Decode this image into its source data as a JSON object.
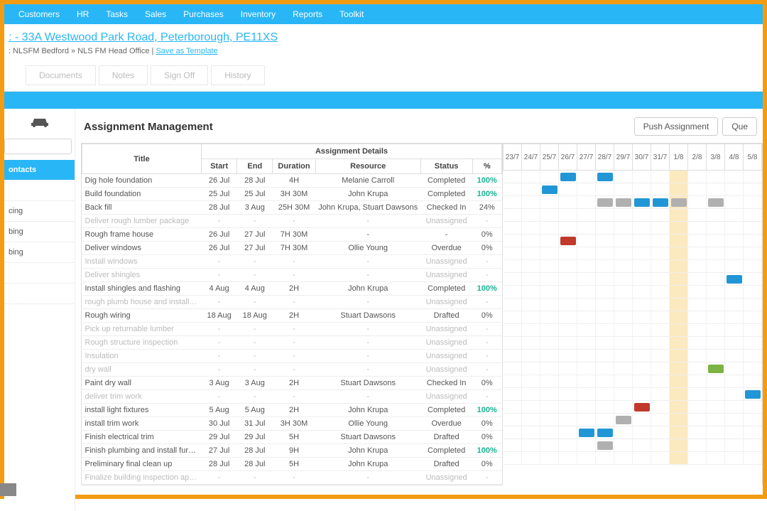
{
  "colors": {
    "blue": "#29b6f6",
    "bar_blue": "#2196d6",
    "bar_gray": "#b0b0b0",
    "bar_red": "#c0392b",
    "bar_green": "#7cb342",
    "highlight": "#fbe9c0"
  },
  "topnav": [
    "Customers",
    "HR",
    "Tasks",
    "Sales",
    "Purchases",
    "Inventory",
    "Reports",
    "Toolkit"
  ],
  "header": {
    "title": ": - 33A Westwood Park Road, Peterborough, PE11XS",
    "crumb_prefix": ": NLSFM Bedford » NLS FM Head Office | ",
    "crumb_link": "Save as Template"
  },
  "tabs": [
    "Documents",
    "Notes",
    "Sign Off",
    "History"
  ],
  "sidebar": {
    "items": [
      {
        "label": "ontacts",
        "active": true
      },
      {
        "label": "",
        "active": false
      },
      {
        "label": "cing",
        "active": false
      },
      {
        "label": "bing",
        "active": false
      },
      {
        "label": "bing",
        "active": false
      },
      {
        "label": "",
        "active": false
      },
      {
        "label": "",
        "active": false
      }
    ]
  },
  "page": {
    "title": "Assignment Management",
    "buttons": [
      "Push Assignment",
      "Que"
    ]
  },
  "table": {
    "group_header": "Assignment Details",
    "columns": [
      "Title",
      "Start",
      "End",
      "Duration",
      "Resource",
      "Status",
      "%"
    ],
    "rows": [
      {
        "title": "Dig hole foundation",
        "start": "26 Jul",
        "end": "28 Jul",
        "dur": "4H",
        "res": "Melanie Carroll",
        "stat": "Completed",
        "pct": "100%",
        "pct100": true
      },
      {
        "title": "Build foundation",
        "start": "25 Jul",
        "end": "25 Jul",
        "dur": "3H 30M",
        "res": "John Krupa",
        "stat": "Completed",
        "pct": "100%",
        "pct100": true
      },
      {
        "title": "Back fill",
        "start": "28 Jul",
        "end": "3 Aug",
        "dur": "25H 30M",
        "res": "John Krupa, Stuart Dawsons",
        "stat": "Checked In",
        "pct": "24%"
      },
      {
        "title": "Deliver rough lumber package",
        "start": "-",
        "end": "-",
        "dur": "-",
        "res": "-",
        "stat": "Unassigned",
        "pct": "-",
        "unassigned": true
      },
      {
        "title": "Rough frame house",
        "start": "26 Jul",
        "end": "27 Jul",
        "dur": "7H 30M",
        "res": "-",
        "stat": "-",
        "pct": "0%"
      },
      {
        "title": "Deliver windows",
        "start": "26 Jul",
        "end": "27 Jul",
        "dur": "7H 30M",
        "res": "Ollie Young",
        "stat": "Overdue",
        "pct": "0%"
      },
      {
        "title": "Install windows",
        "start": "-",
        "end": "-",
        "dur": "-",
        "res": "-",
        "stat": "Unassigned",
        "pct": "-",
        "unassigned": true
      },
      {
        "title": "Deliver shingles",
        "start": "-",
        "end": "-",
        "dur": "-",
        "res": "-",
        "stat": "Unassigned",
        "pct": "-",
        "unassigned": true
      },
      {
        "title": "Install shingles and flashing",
        "start": "4 Aug",
        "end": "4 Aug",
        "dur": "2H",
        "res": "John Krupa",
        "stat": "Completed",
        "pct": "100%",
        "pct100": true
      },
      {
        "title": "rough plumb house and install duct",
        "start": "-",
        "end": "-",
        "dur": "-",
        "res": "-",
        "stat": "Unassigned",
        "pct": "-",
        "unassigned": true
      },
      {
        "title": "Rough wiring",
        "start": "18 Aug",
        "end": "18 Aug",
        "dur": "2H",
        "res": "Stuart Dawsons",
        "stat": "Drafted",
        "pct": "0%"
      },
      {
        "title": "Pick up returnable lumber",
        "start": "-",
        "end": "-",
        "dur": "-",
        "res": "-",
        "stat": "Unassigned",
        "pct": "-",
        "unassigned": true
      },
      {
        "title": "Rough structure inspection",
        "start": "-",
        "end": "-",
        "dur": "-",
        "res": "-",
        "stat": "Unassigned",
        "pct": "-",
        "unassigned": true
      },
      {
        "title": "Insulation",
        "start": "-",
        "end": "-",
        "dur": "-",
        "res": "-",
        "stat": "Unassigned",
        "pct": "-",
        "unassigned": true
      },
      {
        "title": "dry wall",
        "start": "-",
        "end": "-",
        "dur": "-",
        "res": "-",
        "stat": "Unassigned",
        "pct": "-",
        "unassigned": true
      },
      {
        "title": "Paint dry wall",
        "start": "3 Aug",
        "end": "3 Aug",
        "dur": "2H",
        "res": "Stuart Dawsons",
        "stat": "Checked In",
        "pct": "0%"
      },
      {
        "title": "deliver trim work",
        "start": "-",
        "end": "-",
        "dur": "-",
        "res": "-",
        "stat": "Unassigned",
        "pct": "-",
        "unassigned": true
      },
      {
        "title": "install light fixtures",
        "start": "5 Aug",
        "end": "5 Aug",
        "dur": "2H",
        "res": "John Krupa",
        "stat": "Completed",
        "pct": "100%",
        "pct100": true
      },
      {
        "title": "install trim work",
        "start": "30 Jul",
        "end": "31 Jul",
        "dur": "3H 30M",
        "res": "Ollie Young",
        "stat": "Overdue",
        "pct": "0%"
      },
      {
        "title": "Finish electrical trim",
        "start": "29 Jul",
        "end": "29 Jul",
        "dur": "5H",
        "res": "Stuart Dawsons",
        "stat": "Drafted",
        "pct": "0%"
      },
      {
        "title": "Finish plumbing and install furnace",
        "start": "27 Jul",
        "end": "28 Jul",
        "dur": "9H",
        "res": "John Krupa",
        "stat": "Completed",
        "pct": "100%",
        "pct100": true
      },
      {
        "title": "Preliminary final clean up",
        "start": "28 Jul",
        "end": "28 Jul",
        "dur": "5H",
        "res": "John Krupa",
        "stat": "Drafted",
        "pct": "0%"
      },
      {
        "title": "Finalize building inspection approva",
        "start": "-",
        "end": "-",
        "dur": "-",
        "res": "-",
        "stat": "Unassigned",
        "pct": "-",
        "unassigned": true
      }
    ]
  },
  "gantt": {
    "dates": [
      "23/7",
      "24/7",
      "25/7",
      "26/7",
      "27/7",
      "28/7",
      "29/7",
      "30/7",
      "31/7",
      "1/8",
      "2/8",
      "3/8",
      "4/8",
      "5/8"
    ],
    "highlight_col": 9,
    "bars": [
      {
        "row": 0,
        "cells": [
          {
            "col": 3,
            "span": 1,
            "color": "#2196d6"
          },
          {
            "col": 5,
            "span": 1,
            "color": "#2196d6"
          }
        ]
      },
      {
        "row": 1,
        "cells": [
          {
            "col": 2,
            "span": 1,
            "color": "#2196d6"
          }
        ]
      },
      {
        "row": 2,
        "cells": [
          {
            "col": 5,
            "span": 1,
            "color": "#b0b0b0"
          },
          {
            "col": 6,
            "span": 1,
            "color": "#b0b0b0"
          },
          {
            "col": 7,
            "span": 1,
            "color": "#2196d6"
          },
          {
            "col": 8,
            "span": 1,
            "color": "#2196d6"
          },
          {
            "col": 9,
            "span": 1,
            "color": "#b0b0b0"
          },
          {
            "col": 11,
            "span": 1,
            "color": "#b0b0b0"
          }
        ]
      },
      {
        "row": 5,
        "cells": [
          {
            "col": 3,
            "span": 1,
            "color": "#c0392b"
          }
        ]
      },
      {
        "row": 8,
        "cells": [
          {
            "col": 12,
            "span": 1,
            "color": "#2196d6"
          }
        ]
      },
      {
        "row": 15,
        "cells": [
          {
            "col": 11,
            "span": 1,
            "color": "#7cb342"
          }
        ]
      },
      {
        "row": 17,
        "cells": [
          {
            "col": 13,
            "span": 1,
            "color": "#2196d6"
          }
        ]
      },
      {
        "row": 18,
        "cells": [
          {
            "col": 7,
            "span": 1,
            "color": "#c0392b"
          }
        ]
      },
      {
        "row": 19,
        "cells": [
          {
            "col": 6,
            "span": 1,
            "color": "#b0b0b0"
          }
        ]
      },
      {
        "row": 20,
        "cells": [
          {
            "col": 4,
            "span": 1,
            "color": "#2196d6"
          },
          {
            "col": 5,
            "span": 1,
            "color": "#2196d6"
          }
        ]
      },
      {
        "row": 21,
        "cells": [
          {
            "col": 5,
            "span": 1,
            "color": "#b0b0b0"
          }
        ]
      }
    ]
  }
}
